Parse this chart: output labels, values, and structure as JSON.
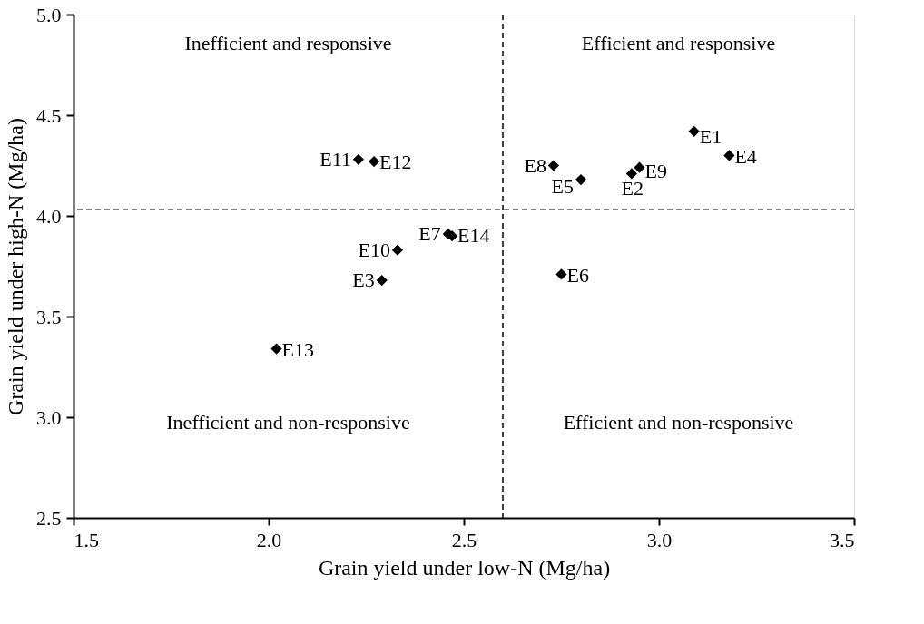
{
  "chart_data": {
    "type": "scatter",
    "xlabel": "Grain yield under low-N (Mg/ha)",
    "ylabel": "Grain yield under high-N (Mg/ha)",
    "xlim": [
      1.5,
      3.5
    ],
    "xticks": [
      {
        "value": 1.5,
        "label": "1.5"
      },
      {
        "value": 2.0,
        "label": "2.0"
      },
      {
        "value": 2.5,
        "label": "2.5"
      },
      {
        "value": 3.0,
        "label": "3.0"
      },
      {
        "value": 3.5,
        "label": "3.5"
      }
    ],
    "ylim": [
      2.5,
      5.0
    ],
    "yticks": [
      {
        "value": 2.5,
        "label": "2.5"
      },
      {
        "value": 3.0,
        "label": "3.0"
      },
      {
        "value": 3.5,
        "label": "3.5"
      },
      {
        "value": 4.0,
        "label": "4.0"
      },
      {
        "value": 4.5,
        "label": "4.5"
      },
      {
        "value": 5.0,
        "label": "5.0"
      }
    ],
    "marker": "diamond",
    "grid": false,
    "series": [
      {
        "name": "E1",
        "color": "#000000",
        "x": [
          3.09
        ],
        "values": [
          4.42
        ]
      },
      {
        "name": "E2",
        "color": "#000000",
        "x": [
          2.93
        ],
        "values": [
          4.21
        ]
      },
      {
        "name": "E3",
        "color": "#000000",
        "x": [
          2.29
        ],
        "values": [
          3.68
        ]
      },
      {
        "name": "E4",
        "color": "#000000",
        "x": [
          3.18
        ],
        "values": [
          4.3
        ]
      },
      {
        "name": "E5",
        "color": "#000000",
        "x": [
          2.8
        ],
        "values": [
          4.18
        ]
      },
      {
        "name": "E6",
        "color": "#000000",
        "x": [
          2.75
        ],
        "values": [
          3.71
        ]
      },
      {
        "name": "E7",
        "color": "#000000",
        "x": [
          2.46
        ],
        "values": [
          3.91
        ]
      },
      {
        "name": "E8",
        "color": "#000000",
        "x": [
          2.73
        ],
        "values": [
          4.25
        ]
      },
      {
        "name": "E9",
        "color": "#000000",
        "x": [
          2.95
        ],
        "values": [
          4.24
        ]
      },
      {
        "name": "E10",
        "color": "#000000",
        "x": [
          2.33
        ],
        "values": [
          3.83
        ]
      },
      {
        "name": "E11",
        "color": "#000000",
        "x": [
          2.23
        ],
        "values": [
          4.28
        ]
      },
      {
        "name": "E12",
        "color": "#000000",
        "x": [
          2.27
        ],
        "values": [
          4.27
        ]
      },
      {
        "name": "E13",
        "color": "#000000",
        "x": [
          2.02
        ],
        "values": [
          3.34
        ]
      },
      {
        "name": "E14",
        "color": "#000000",
        "x": [
          2.47
        ],
        "values": [
          3.9
        ]
      }
    ],
    "ref_lines": [
      {
        "axis": "x",
        "value": 2.6,
        "line_style": "dashed",
        "color": "#000000"
      },
      {
        "axis": "y",
        "value": 4.03,
        "line_style": "dashed",
        "color": "#000000"
      }
    ],
    "annotations": [
      "Inefficient and responsive",
      "Efficient and responsive",
      "Inefficient and non-responsive",
      "Efficient and non-responsive"
    ]
  }
}
